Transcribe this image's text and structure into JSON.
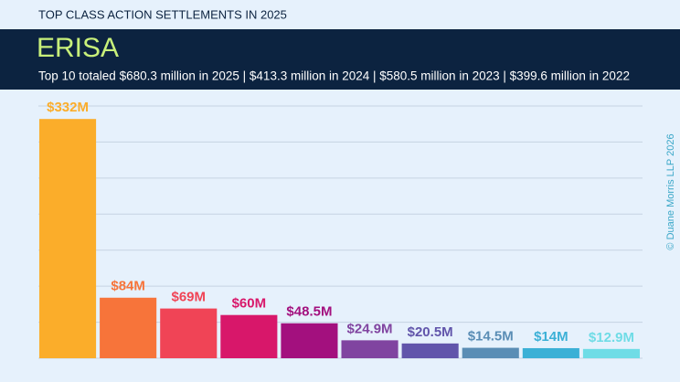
{
  "chart_data": {
    "type": "bar",
    "supertitle": "TOP CLASS ACTION SETTLEMENTS IN 2025",
    "title": "ERISA",
    "subtitle": "Top 10 totaled $680.3 million in 2025 | $413.3 million in 2024 | $580.5 million in 2023 | $399.6 million in 2022",
    "credit": "© Duane Morris LLP 2026",
    "values": [
      332,
      84,
      69,
      60,
      48.5,
      24.9,
      20.5,
      14.5,
      14,
      12.9
    ],
    "value_labels": [
      "$332M",
      "$84M",
      "$69M",
      "$60M",
      "$48.5M",
      "$24.9M",
      "$20.5M",
      "$14.5M",
      "$14M",
      "$12.9M"
    ],
    "colors": [
      "#fbad2a",
      "#f7743a",
      "#f04456",
      "#d8176a",
      "#a3107e",
      "#8044a0",
      "#6155ab",
      "#5a8db5",
      "#3bb0d6",
      "#6fdce6"
    ],
    "ylim": [
      0,
      350
    ],
    "yticks": [
      0,
      50,
      100,
      150,
      200,
      250,
      300,
      350
    ],
    "grid": true
  }
}
